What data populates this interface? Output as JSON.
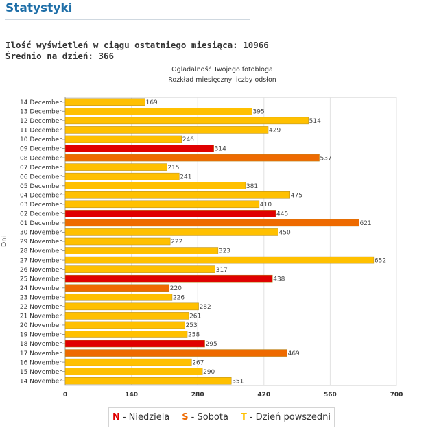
{
  "page": {
    "title": "Statystyki",
    "views_label": "Ilość wyświetleń w ciągu ostatniego miesiąca:",
    "views_value": "10966",
    "avg_label": "Średnio na dzień:",
    "avg_value": "366"
  },
  "chart_data": {
    "type": "bar",
    "orientation": "horizontal",
    "title": "Ogladalność Twojego fotobloga",
    "subtitle": "Rozkład miesięczny liczby odsłon",
    "ylabel": "Dni",
    "xlabel": "",
    "xlim": [
      0,
      700
    ],
    "xticks": [
      0,
      140,
      280,
      420,
      560,
      700
    ],
    "grid": true,
    "categories": [
      "14 December",
      "13 December",
      "12 December",
      "11 December",
      "10 December",
      "09 December",
      "08 December",
      "07 December",
      "06 December",
      "05 December",
      "04 December",
      "03 December",
      "02 December",
      "01 December",
      "30 November",
      "29 November",
      "28 November",
      "27 November",
      "26 November",
      "25 November",
      "24 November",
      "23 November",
      "22 November",
      "21 November",
      "20 November",
      "19 November",
      "18 November",
      "17 November",
      "16 November",
      "15 November",
      "14 November"
    ],
    "values": [
      169,
      395,
      514,
      429,
      246,
      314,
      537,
      215,
      241,
      381,
      475,
      410,
      445,
      621,
      450,
      222,
      323,
      652,
      317,
      438,
      220,
      226,
      282,
      261,
      253,
      258,
      295,
      469,
      267,
      290,
      351
    ],
    "day_types": [
      "T",
      "T",
      "T",
      "T",
      "T",
      "N",
      "S",
      "T",
      "T",
      "T",
      "T",
      "T",
      "N",
      "S",
      "T",
      "T",
      "T",
      "T",
      "T",
      "N",
      "S",
      "T",
      "T",
      "T",
      "T",
      "T",
      "N",
      "S",
      "T",
      "T",
      "T"
    ],
    "colors": {
      "N": "#e00000",
      "S": "#ee6a00",
      "T": "#ffc000"
    }
  },
  "legend": [
    {
      "letter": "N",
      "label": "- Niedziela",
      "color": "#e00000"
    },
    {
      "letter": "S",
      "label": "- Sobota",
      "color": "#ee6a00"
    },
    {
      "letter": "T",
      "label": "- Dzień powszedni",
      "color": "#ffc000"
    }
  ]
}
